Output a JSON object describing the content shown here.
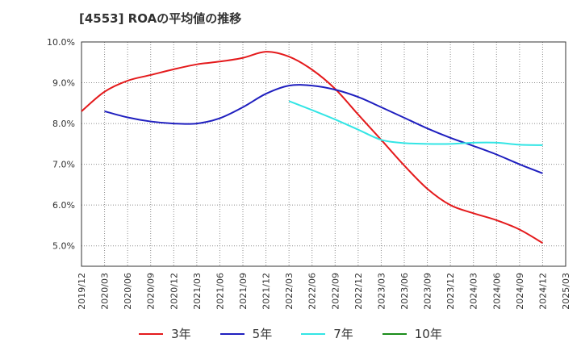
{
  "chart_data": {
    "type": "line",
    "title": "[4553]  ROAの平均値の推移",
    "x_labels": [
      "2019/12",
      "2020/03",
      "2020/06",
      "2020/09",
      "2020/12",
      "2021/03",
      "2021/06",
      "2021/09",
      "2021/12",
      "2022/03",
      "2022/06",
      "2022/09",
      "2022/12",
      "2023/03",
      "2023/06",
      "2023/09",
      "2023/12",
      "2024/03",
      "2024/06",
      "2024/09",
      "2024/12",
      "2025/03"
    ],
    "y_ticks": [
      "5.0%",
      "6.0%",
      "7.0%",
      "8.0%",
      "9.0%",
      "10.0%"
    ],
    "ylim": [
      4.5,
      10.0
    ],
    "grid": true,
    "legend_position": "bottom",
    "series": [
      {
        "name": "3年",
        "color": "#e41a1c",
        "x": [
          "2019/12",
          "2020/03",
          "2020/06",
          "2020/09",
          "2020/12",
          "2021/03",
          "2021/06",
          "2021/09",
          "2021/12",
          "2022/03",
          "2022/06",
          "2022/09",
          "2022/12",
          "2023/03",
          "2023/06",
          "2023/09",
          "2023/12",
          "2024/03",
          "2024/06",
          "2024/09",
          "2024/12"
        ],
        "values": [
          8.3,
          8.78,
          9.05,
          9.19,
          9.33,
          9.45,
          9.52,
          9.61,
          9.76,
          9.64,
          9.32,
          8.85,
          8.22,
          7.6,
          6.97,
          6.4,
          6.0,
          5.8,
          5.63,
          5.4,
          5.07
        ]
      },
      {
        "name": "5年",
        "color": "#1f1fbf",
        "x": [
          "2020/03",
          "2020/06",
          "2020/09",
          "2020/12",
          "2021/03",
          "2021/06",
          "2021/09",
          "2021/12",
          "2022/03",
          "2022/06",
          "2022/09",
          "2022/12",
          "2023/03",
          "2023/06",
          "2023/09",
          "2023/12",
          "2024/03",
          "2024/06",
          "2024/09",
          "2024/12"
        ],
        "values": [
          8.3,
          8.15,
          8.05,
          8.0,
          8.0,
          8.13,
          8.4,
          8.73,
          8.93,
          8.93,
          8.83,
          8.65,
          8.4,
          8.14,
          7.88,
          7.65,
          7.45,
          7.24,
          7.0,
          6.78
        ]
      },
      {
        "name": "7年",
        "color": "#33e5e5",
        "x": [
          "2022/03",
          "2022/06",
          "2022/09",
          "2022/12",
          "2023/03",
          "2023/06",
          "2023/09",
          "2023/12",
          "2024/03",
          "2024/06",
          "2024/09",
          "2024/12"
        ],
        "values": [
          8.55,
          8.33,
          8.1,
          7.85,
          7.6,
          7.52,
          7.5,
          7.5,
          7.53,
          7.53,
          7.48,
          7.47
        ]
      },
      {
        "name": "10年",
        "color": "#1a8c1a",
        "x": [],
        "values": []
      }
    ]
  }
}
